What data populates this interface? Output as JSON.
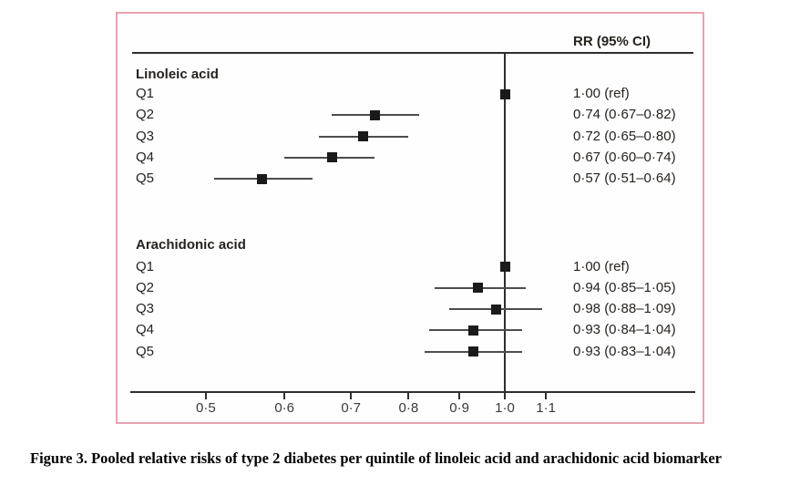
{
  "figure": {
    "column_header": "RR (95% CI)",
    "caption": "Figure 3. Pooled relative risks of type 2 diabetes per quintile of linoleic acid and arachidonic acid biomarker"
  },
  "colors": {
    "border_pink": "#e9a2b2",
    "marker_black": "#1a1a1a",
    "ci_line_gray": "#4d4d4d",
    "axis_dark": "#2e2e2e",
    "text_dark": "#26221e"
  },
  "chart_data": {
    "type": "forest",
    "x_scale": "log10",
    "ref_value": 1.0,
    "x_range": [
      0.45,
      1.25
    ],
    "column_header": "RR (95% CI)",
    "x_ticks": [
      {
        "value": 0.5,
        "label": "0·5"
      },
      {
        "value": 0.6,
        "label": "0·6"
      },
      {
        "value": 0.7,
        "label": "0·7"
      },
      {
        "value": 0.8,
        "label": "0·8"
      },
      {
        "value": 0.9,
        "label": "0·9"
      },
      {
        "value": 1.0,
        "label": "1·0"
      },
      {
        "value": 1.1,
        "label": "1·1"
      }
    ],
    "groups": [
      {
        "name": "Linoleic acid",
        "rows": [
          {
            "label": "Q1",
            "rr": 1.0,
            "lo": null,
            "hi": null,
            "text": "1·00 (ref)"
          },
          {
            "label": "Q2",
            "rr": 0.74,
            "lo": 0.67,
            "hi": 0.82,
            "text": "0·74 (0·67–0·82)"
          },
          {
            "label": "Q3",
            "rr": 0.72,
            "lo": 0.65,
            "hi": 0.8,
            "text": "0·72 (0·65–0·80)"
          },
          {
            "label": "Q4",
            "rr": 0.67,
            "lo": 0.6,
            "hi": 0.74,
            "text": "0·67 (0·60–0·74)"
          },
          {
            "label": "Q5",
            "rr": 0.57,
            "lo": 0.51,
            "hi": 0.64,
            "text": "0·57 (0·51–0·64)"
          }
        ]
      },
      {
        "name": "Arachidonic acid",
        "rows": [
          {
            "label": "Q1",
            "rr": 1.0,
            "lo": null,
            "hi": null,
            "text": "1·00 (ref)"
          },
          {
            "label": "Q2",
            "rr": 0.94,
            "lo": 0.85,
            "hi": 1.05,
            "text": "0·94 (0·85–1·05)"
          },
          {
            "label": "Q3",
            "rr": 0.98,
            "lo": 0.88,
            "hi": 1.09,
            "text": "0·98 (0·88–1·09)"
          },
          {
            "label": "Q4",
            "rr": 0.93,
            "lo": 0.84,
            "hi": 1.04,
            "text": "0·93 (0·84–1·04)"
          },
          {
            "label": "Q5",
            "rr": 0.93,
            "lo": 0.83,
            "hi": 1.04,
            "text": "0·93 (0·83–1·04)"
          }
        ]
      }
    ]
  }
}
